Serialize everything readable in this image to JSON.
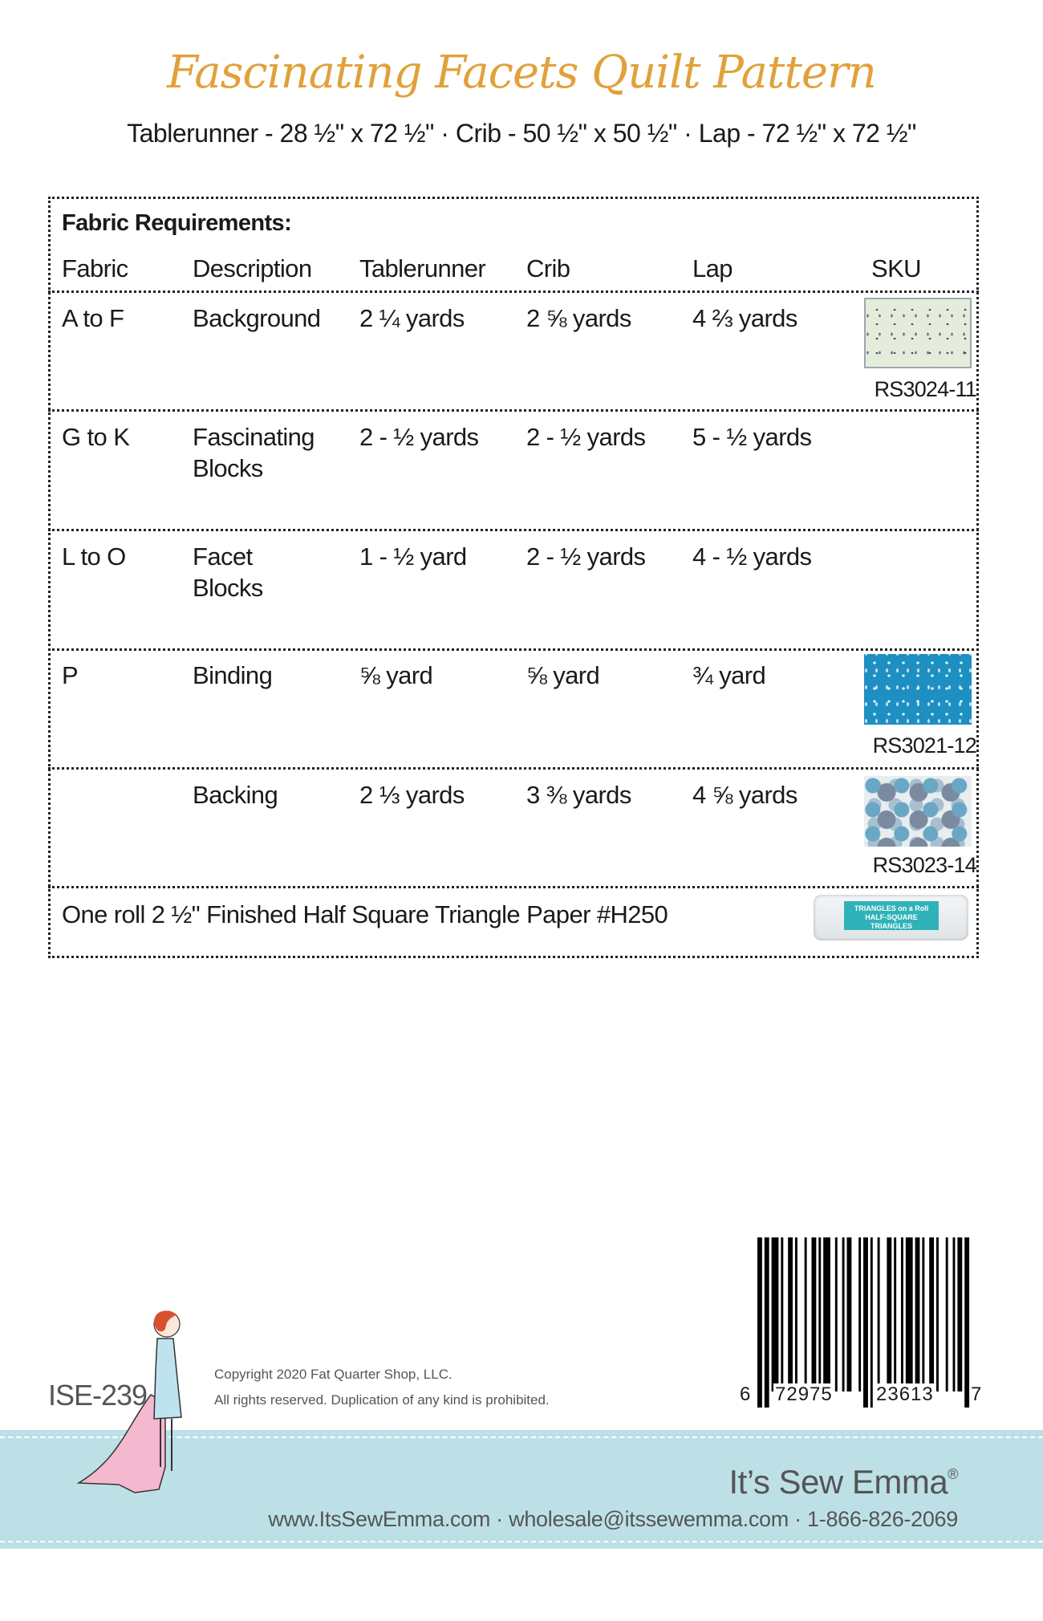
{
  "header": {
    "title": "Fascinating Facets Quilt Pattern",
    "sizes": "Tablerunner - 28 ½\" x 72 ½\"  ·  Crib - 50 ½\" x 50 ½\"  ·  Lap - 72 ½\" x 72 ½\""
  },
  "table": {
    "heading": "Fabric Requirements:",
    "columns": [
      "Fabric",
      "Description",
      "Tablerunner",
      "Crib",
      "Lap",
      "SKU"
    ],
    "rows": [
      {
        "fabric": "A to F",
        "description": "Background",
        "tablerunner": "2 ¼ yards",
        "crib": "2 ⅝ yards",
        "lap": "4 ⅔ yards",
        "sku": "RS3024-11",
        "swatch_color": "#e6ecdc"
      },
      {
        "fabric": "G to K",
        "description": "Fascinating",
        "description2": "Blocks",
        "tablerunner": "2 - ½ yards",
        "crib": "2 - ½ yards",
        "lap": "5 - ½ yards"
      },
      {
        "fabric": "L to O",
        "description": "Facet",
        "description2": "Blocks",
        "tablerunner": "1 - ½ yard",
        "crib": "2 - ½ yards",
        "lap": "4 - ½ yards"
      },
      {
        "fabric": "P",
        "description": "Binding",
        "tablerunner": "⅝ yard",
        "crib": "⅝ yard",
        "lap": "¾ yard",
        "sku": "RS3021-12",
        "swatch_color": "#1e8fc2"
      },
      {
        "fabric": "",
        "description": "Backing",
        "tablerunner": "2 ⅓ yards",
        "crib": "3 ⅜ yards",
        "lap": "4 ⅝ yards",
        "sku": "RS3023-14",
        "swatch_color": "#9fb8c8"
      }
    ],
    "notions": "One roll 2 ½\" Finished Half Square Triangle Paper #H250",
    "notions_product_label": "TRIANGLES on a Roll HALF-SQUARE TRIANGLES"
  },
  "footer": {
    "code": "ISE-239",
    "copyright": "Copyright 2020 Fat Quarter Shop, LLC.",
    "rights": "All rights reserved. Duplication of any kind is prohibited.",
    "barcode_digits": [
      "6",
      "72975",
      "23613",
      "7"
    ],
    "brand": "It’s Sew Emma",
    "brand_mark": "®",
    "contact": "www.ItsSewEmma.com · wholesale@itssewemma.com · 1-866-826-2069",
    "band_color": "#bde0e7",
    "title_color": "#e1a13a"
  }
}
